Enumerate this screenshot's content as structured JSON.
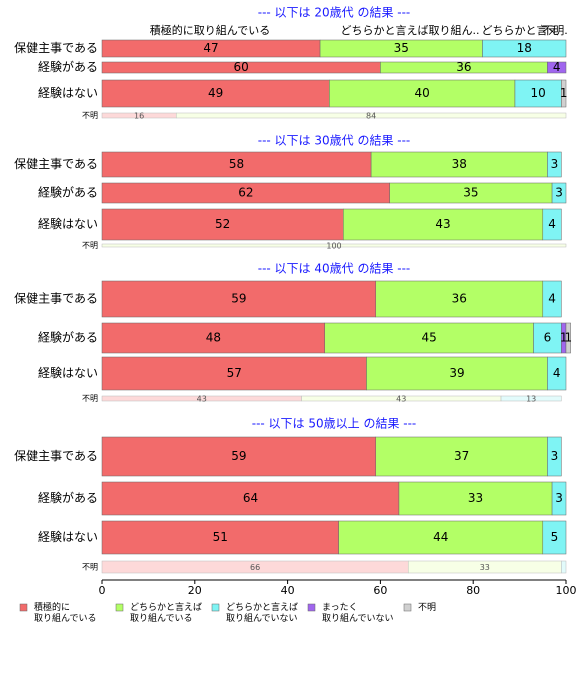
{
  "chart_data": {
    "type": "bar",
    "orientation": "horizontal",
    "stacked": true,
    "column_labels": [
      "積極的に取り組んでいる",
      "どちらかと言えば取り組ん..",
      "どちらかと言え",
      "不明."
    ],
    "series": [
      {
        "name": "積極的に\n取り組んでいる",
        "color": "#f26b6b",
        "light_color": "#fdd9d9"
      },
      {
        "name": "どちらかと言えば\n取り組んでいる",
        "color": "#b3ff66",
        "light_color": "#f7ffe6"
      },
      {
        "name": "どちらかと言えば\n取り組んでいない",
        "color": "#7ff4f4",
        "light_color": "#e2fbfb"
      },
      {
        "name": "まったく\n取り組んでいない",
        "color": "#a066ee",
        "light_color": "#ece0fb"
      },
      {
        "name": "不明",
        "color": "#d0d0d0",
        "light_color": "#f0f0f0"
      }
    ],
    "panels": [
      {
        "title": "--- 以下は 20歳代 の結果 ---",
        "rows": [
          {
            "label": "保健主事である",
            "values": [
              47,
              35,
              18,
              0,
              0
            ]
          },
          {
            "label": "経験がある",
            "values": [
              60,
              36,
              0,
              4,
              0
            ]
          },
          {
            "label": "経験はない",
            "values": [
              49,
              40,
              10,
              0,
              1
            ]
          },
          {
            "label": "不明",
            "values": [
              16,
              84,
              0,
              0,
              0
            ]
          }
        ]
      },
      {
        "title": "--- 以下は 30歳代 の結果 ---",
        "rows": [
          {
            "label": "保健主事である",
            "values": [
              58,
              38,
              3,
              0,
              0
            ]
          },
          {
            "label": "経験がある",
            "values": [
              62,
              35,
              3,
              0,
              0
            ]
          },
          {
            "label": "経験はない",
            "values": [
              52,
              43,
              4,
              0,
              0
            ]
          },
          {
            "label": "不明",
            "values": [
              0,
              100,
              0,
              0,
              0
            ]
          }
        ]
      },
      {
        "title": "--- 以下は 40歳代 の結果 ---",
        "rows": [
          {
            "label": "保健主事である",
            "values": [
              59,
              36,
              4,
              0,
              0
            ]
          },
          {
            "label": "経験がある",
            "values": [
              48,
              45,
              6,
              1,
              1
            ]
          },
          {
            "label": "経験はない",
            "values": [
              57,
              39,
              4,
              0,
              0
            ]
          },
          {
            "label": "不明",
            "values": [
              43,
              43,
              13,
              0,
              0
            ]
          }
        ]
      },
      {
        "title": "--- 以下は 50歳以上 の結果 ---",
        "rows": [
          {
            "label": "保健主事である",
            "values": [
              59,
              37,
              3,
              0,
              0
            ]
          },
          {
            "label": "経験がある",
            "values": [
              64,
              33,
              3,
              0,
              0
            ]
          },
          {
            "label": "経験はない",
            "values": [
              51,
              44,
              5,
              0,
              0
            ]
          },
          {
            "label": "不明",
            "values": [
              66,
              33,
              1,
              0,
              0
            ]
          }
        ]
      }
    ],
    "xlim": [
      0,
      100
    ],
    "xticks": [
      0,
      20,
      40,
      60,
      80,
      100
    ]
  }
}
